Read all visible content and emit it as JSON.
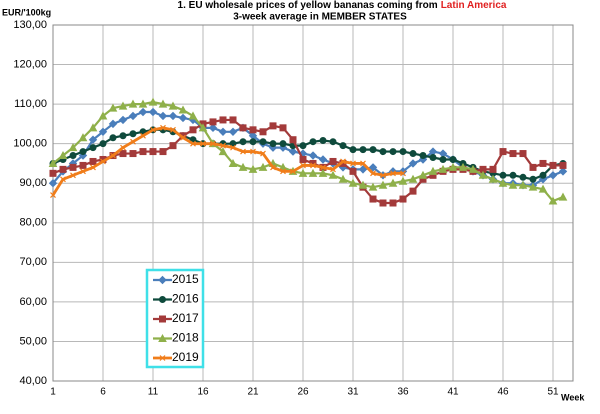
{
  "chart_data": {
    "type": "line",
    "title": "1. EU wholesale prices of yellow bananas  coming from",
    "title_highlight": "Latin America",
    "subtitle": "3-week average in MEMBER STATES",
    "y_label": "EUR/'100kg",
    "x_label": "Week",
    "x": [
      1,
      2,
      3,
      4,
      5,
      6,
      7,
      8,
      9,
      10,
      11,
      12,
      13,
      14,
      15,
      16,
      17,
      18,
      19,
      20,
      21,
      22,
      23,
      24,
      25,
      26,
      27,
      28,
      29,
      30,
      31,
      32,
      33,
      34,
      35,
      36,
      37,
      38,
      39,
      40,
      41,
      42,
      43,
      44,
      45,
      46,
      47,
      48,
      49,
      50,
      51,
      52
    ],
    "xlim": [
      1,
      53
    ],
    "xticks": [
      1,
      6,
      11,
      16,
      21,
      26,
      31,
      36,
      41,
      46,
      51
    ],
    "ylim": [
      40,
      130
    ],
    "yticks": [
      {
        "value": 40,
        "label": "40,00"
      },
      {
        "value": 50,
        "label": "50,00"
      },
      {
        "value": 60,
        "label": "60,00"
      },
      {
        "value": 70,
        "label": "70,00"
      },
      {
        "value": 80,
        "label": "80,00"
      },
      {
        "value": 90,
        "label": "90,00"
      },
      {
        "value": 100,
        "label": "100,00"
      },
      {
        "value": 110,
        "label": "110,00"
      },
      {
        "value": 120,
        "label": "120,00"
      },
      {
        "value": 130,
        "label": "130,00"
      }
    ],
    "grid": true,
    "series": [
      {
        "name": "2015",
        "color": "#4a7ebb",
        "marker": "diamond",
        "values": [
          90,
          93,
          95,
          97,
          101,
          103,
          105,
          106,
          107,
          108,
          108,
          107,
          107,
          106.5,
          106,
          104,
          104,
          103,
          103,
          104,
          102,
          100,
          99,
          99,
          98,
          97.5,
          97,
          96,
          95,
          94,
          93.5,
          93.5,
          94,
          92,
          93,
          93,
          95,
          96,
          98,
          97.5,
          96,
          94,
          93,
          92,
          91,
          90,
          90,
          89.5,
          89.5,
          91,
          92,
          93
        ]
      },
      {
        "name": "2016",
        "color": "#0f4a3c",
        "marker": "circle",
        "values": [
          95,
          96,
          97,
          98,
          99,
          100,
          101.5,
          102,
          102.5,
          103,
          103.5,
          103.5,
          103,
          102,
          101,
          100,
          100,
          100,
          100,
          100.5,
          100.5,
          100.5,
          100,
          100,
          99.5,
          99.5,
          100.5,
          100.8,
          100.5,
          99.5,
          98.5,
          98.5,
          98.5,
          98,
          98,
          98,
          97.5,
          97,
          96.5,
          96,
          96,
          95,
          94,
          93,
          92.5,
          92,
          92,
          91.5,
          91,
          92,
          94.5,
          95
        ]
      },
      {
        "name": "2017",
        "color": "#a33a3a",
        "marker": "square",
        "values": [
          92.5,
          93.5,
          94,
          94.5,
          95.5,
          96,
          97,
          97.5,
          97.5,
          98,
          98,
          98,
          99.5,
          102,
          103.5,
          105,
          105.5,
          106,
          106,
          104,
          103.5,
          103,
          104.5,
          104,
          101,
          96,
          95,
          94,
          95.5,
          95,
          93,
          89,
          86,
          85,
          85,
          86,
          88,
          91,
          92,
          93,
          93.5,
          93.5,
          93,
          93.5,
          93.5,
          98,
          97.5,
          97.5,
          94,
          95,
          94.5,
          94.5
        ]
      },
      {
        "name": "2018",
        "color": "#8fb04a",
        "marker": "triangle",
        "values": [
          95,
          97,
          99,
          101.5,
          104,
          107,
          109,
          109.5,
          110,
          110,
          110.5,
          110,
          109.5,
          108.5,
          107,
          104,
          100,
          98,
          95,
          94,
          93.5,
          94,
          95,
          94,
          93,
          92.5,
          92.5,
          92.5,
          92,
          91,
          90,
          89.5,
          89,
          89.5,
          90,
          90.5,
          91,
          92,
          93,
          93.5,
          94,
          94,
          93.5,
          92,
          91,
          90,
          89.5,
          89.5,
          89,
          88.5,
          85.5,
          86.5
        ]
      },
      {
        "name": "2019",
        "color": "#f07d1a",
        "marker": "cross",
        "values": [
          87,
          91,
          92,
          93,
          94,
          95.5,
          97,
          99,
          100.5,
          102,
          103.5,
          104,
          103.5,
          101.5,
          100,
          100,
          100,
          99.5,
          99,
          98,
          98,
          97.5,
          94,
          93,
          93,
          94.5,
          94.5,
          94,
          93.5,
          95.5,
          95,
          95,
          92.5,
          92,
          92.5,
          92.5,
          null,
          null,
          null,
          null,
          null,
          null,
          null,
          null,
          null,
          null,
          null,
          null,
          null,
          null,
          null,
          null
        ]
      }
    ]
  }
}
